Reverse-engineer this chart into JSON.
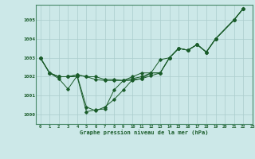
{
  "background_color": "#cce8e8",
  "line_color": "#1a5c2a",
  "grid_color": "#aacccc",
  "title": "Graphe pression niveau de la mer (hPa)",
  "xlim": [
    -0.5,
    23
  ],
  "ylim": [
    999.5,
    1005.8
  ],
  "yticks": [
    1000,
    1001,
    1002,
    1003,
    1004,
    1005
  ],
  "xtick_labels": [
    "0",
    "1",
    "2",
    "3",
    "4",
    "5",
    "6",
    "7",
    "8",
    "9",
    "10",
    "11",
    "12",
    "13",
    "14",
    "15",
    "16",
    "17",
    "18",
    "19",
    "20",
    "21",
    "22",
    "23"
  ],
  "s1_x": [
    0,
    1,
    2,
    3,
    4,
    5,
    6,
    7,
    8,
    9,
    10,
    11,
    12,
    13,
    14,
    15,
    16,
    17,
    18,
    19,
    21,
    22
  ],
  "s1_y": [
    1003.0,
    1002.2,
    1002.0,
    1002.0,
    1002.1,
    1002.0,
    1002.0,
    1001.85,
    1001.85,
    1001.8,
    1001.9,
    1002.0,
    1002.2,
    1002.2,
    1003.0,
    1003.5,
    1003.4,
    1003.7,
    1003.3,
    1004.0,
    1005.0,
    1005.6
  ],
  "s2_x": [
    0,
    1,
    2,
    3,
    4,
    5,
    6,
    7,
    8,
    9,
    10,
    11,
    12,
    13,
    14,
    15,
    16,
    17,
    18,
    19,
    21,
    22
  ],
  "s2_y": [
    1003.0,
    1002.2,
    1001.9,
    1001.35,
    1002.05,
    1000.4,
    1000.2,
    1000.4,
    1000.8,
    1001.3,
    1001.85,
    1001.9,
    1002.05,
    1002.2,
    1003.0,
    1003.5,
    1003.4,
    1003.7,
    1003.3,
    1004.0,
    1005.0,
    1005.6
  ],
  "s3_x": [
    0,
    1,
    2,
    3,
    4,
    5,
    6,
    7,
    8,
    9,
    10,
    11,
    12,
    13,
    14,
    15,
    16,
    17,
    18,
    19,
    21,
    22
  ],
  "s3_y": [
    1003.0,
    1002.2,
    1002.0,
    1002.0,
    1002.1,
    1002.0,
    1001.85,
    1001.8,
    1001.8,
    1001.8,
    1002.0,
    1002.2,
    1002.2,
    1002.9,
    1003.0,
    1003.5,
    1003.4,
    1003.7,
    1003.3,
    1004.0,
    1005.0,
    1005.6
  ],
  "s4_x": [
    0,
    1,
    2,
    3,
    4,
    5,
    6,
    7,
    8,
    9,
    10,
    11,
    12,
    13,
    14,
    15,
    16,
    17,
    18,
    19,
    21,
    22
  ],
  "s4_y": [
    1003.0,
    1002.2,
    1002.0,
    1002.0,
    1002.0,
    1000.15,
    1000.25,
    1000.3,
    1001.3,
    1001.8,
    1001.8,
    1001.9,
    1002.2,
    1002.2,
    1003.0,
    1003.5,
    1003.4,
    1003.7,
    1003.3,
    1004.0,
    1005.0,
    1005.6
  ]
}
